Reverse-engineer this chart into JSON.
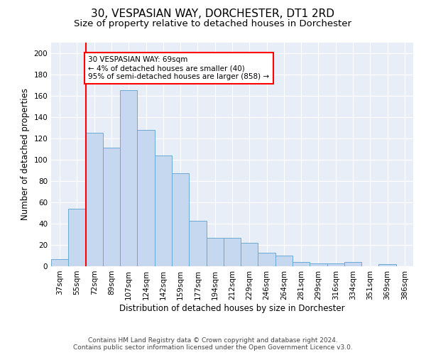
{
  "title": "30, VESPASIAN WAY, DORCHESTER, DT1 2RD",
  "subtitle": "Size of property relative to detached houses in Dorchester",
  "xlabel": "Distribution of detached houses by size in Dorchester",
  "ylabel": "Number of detached properties",
  "bar_labels": [
    "37sqm",
    "55sqm",
    "72sqm",
    "89sqm",
    "107sqm",
    "124sqm",
    "142sqm",
    "159sqm",
    "177sqm",
    "194sqm",
    "212sqm",
    "229sqm",
    "246sqm",
    "264sqm",
    "281sqm",
    "299sqm",
    "316sqm",
    "334sqm",
    "351sqm",
    "369sqm",
    "386sqm"
  ],
  "bar_values": [
    7,
    54,
    125,
    111,
    165,
    128,
    104,
    87,
    43,
    27,
    27,
    22,
    13,
    10,
    4,
    3,
    3,
    4,
    0,
    2,
    0
  ],
  "bar_color": "#c5d8f0",
  "bar_edge_color": "#6aaad4",
  "vline_color": "red",
  "vline_x_index": 2,
  "annotation_text": "30 VESPASIAN WAY: 69sqm\n← 4% of detached houses are smaller (40)\n95% of semi-detached houses are larger (858) →",
  "annotation_box_color": "white",
  "annotation_box_edge_color": "red",
  "ylim": [
    0,
    210
  ],
  "yticks": [
    0,
    20,
    40,
    60,
    80,
    100,
    120,
    140,
    160,
    180,
    200
  ],
  "background_color": "#e8eef8",
  "footer_line1": "Contains HM Land Registry data © Crown copyright and database right 2024.",
  "footer_line2": "Contains public sector information licensed under the Open Government Licence v3.0.",
  "title_fontsize": 11,
  "subtitle_fontsize": 9.5,
  "xlabel_fontsize": 8.5,
  "ylabel_fontsize": 8.5,
  "tick_fontsize": 7.5,
  "footer_fontsize": 6.5,
  "annot_fontsize": 7.5
}
